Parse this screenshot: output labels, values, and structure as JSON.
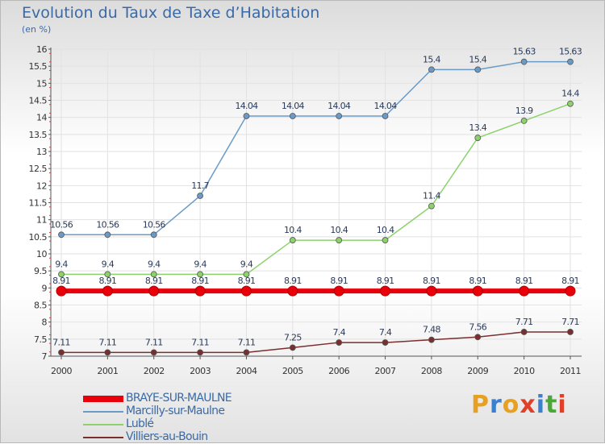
{
  "header": {
    "title": "Evolution du Taux de Taxe d’Habitation",
    "subtitle": "(en %)"
  },
  "logo": {
    "text": "Proxiti",
    "colors": [
      "#e8a020",
      "#3a7fd0",
      "#e8a020",
      "#e0402a",
      "#3a7fd0",
      "#4aa838",
      "#e0402a"
    ]
  },
  "chart_data": {
    "type": "line",
    "title": "Evolution du Taux de Taxe d’Habitation",
    "ylabel": "(en %)",
    "x": [
      "2000",
      "2001",
      "2002",
      "2003",
      "2004",
      "2005",
      "2006",
      "2007",
      "2008",
      "2009",
      "2010",
      "2011"
    ],
    "ylim": [
      7,
      16
    ],
    "yticks": [
      "7",
      "7.5",
      "8",
      "8.5",
      "9",
      "9.5",
      "10",
      "10.5",
      "11",
      "11.5",
      "12",
      "12.5",
      "13",
      "13.5",
      "14",
      "14.5",
      "15",
      "15.5",
      "16"
    ],
    "grid": true,
    "legend_position": "bottom-left",
    "series": [
      {
        "name": "BRAYE-SUR-MAULNE",
        "color": "#e8000a",
        "values": [
          8.91,
          8.91,
          8.91,
          8.91,
          8.91,
          8.91,
          8.91,
          8.91,
          8.91,
          8.91,
          8.91,
          8.91
        ],
        "labels": [
          "8.91",
          "8.91",
          "8.91",
          "8.91",
          "8.91",
          "8.91",
          "8.91",
          "8.91",
          "8.91",
          "8.91",
          "8.91",
          "8.91"
        ]
      },
      {
        "name": "Marcilly-sur-Maulne",
        "color": "#6a9bc8",
        "values": [
          10.56,
          10.56,
          10.56,
          11.7,
          14.04,
          14.04,
          14.04,
          14.04,
          15.4,
          15.4,
          15.63,
          15.63
        ],
        "labels": [
          "10.56",
          "10.56",
          "10.56",
          "11.7",
          "14.04",
          "14.04",
          "14.04",
          "14.04",
          "15.4",
          "15.4",
          "15.63",
          "15.63"
        ]
      },
      {
        "name": "Lublé",
        "color": "#8cd26a",
        "values": [
          9.4,
          9.4,
          9.4,
          9.4,
          9.4,
          10.4,
          10.4,
          10.4,
          11.4,
          13.4,
          13.9,
          14.4
        ],
        "labels": [
          "9.4",
          "9.4",
          "9.4",
          "9.4",
          "9.4",
          "10.4",
          "10.4",
          "10.4",
          "11.4",
          "13.4",
          "13.9",
          "14.4"
        ]
      },
      {
        "name": "Villiers-au-Bouin",
        "color": "#7a2e2e",
        "values": [
          7.11,
          7.11,
          7.11,
          7.11,
          7.11,
          7.25,
          7.4,
          7.4,
          7.48,
          7.56,
          7.71,
          7.71
        ],
        "labels": [
          "7.11",
          "7.11",
          "7.11",
          "7.11",
          "7.11",
          "7.25",
          "7.4",
          "7.4",
          "7.48",
          "7.56",
          "7.71",
          "7.71"
        ]
      }
    ]
  }
}
